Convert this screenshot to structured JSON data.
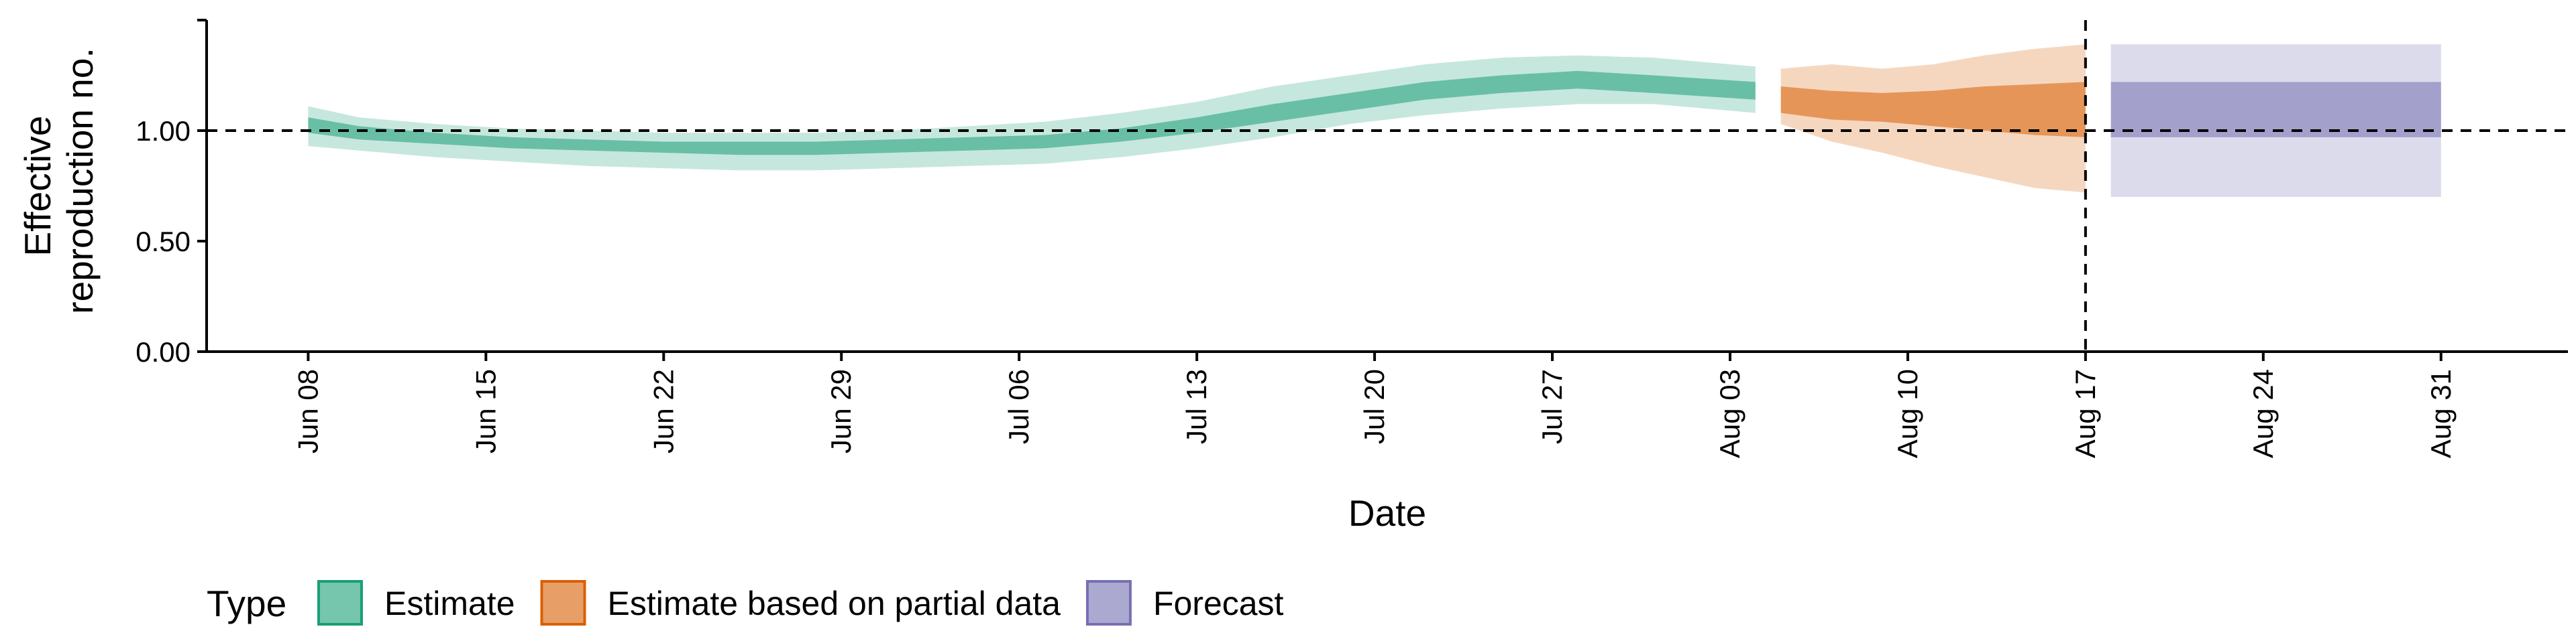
{
  "chart_data": {
    "type": "area",
    "title": "",
    "xlabel": "Date",
    "ylabel_lines": [
      "Effective",
      "reproduction no."
    ],
    "ylim": [
      0,
      1.5
    ],
    "yticks": [
      0,
      0.5,
      1,
      1.5
    ],
    "ytick_labels": [
      "0.00",
      "0.50",
      "1.00",
      ""
    ],
    "xlim": [
      "2020-06-04",
      "2020-09-05"
    ],
    "xticks": [
      "2020-06-08",
      "2020-06-15",
      "2020-06-22",
      "2020-06-29",
      "2020-07-06",
      "2020-07-13",
      "2020-07-20",
      "2020-07-27",
      "2020-08-03",
      "2020-08-10",
      "2020-08-17",
      "2020-08-24",
      "2020-08-31"
    ],
    "xtick_labels": [
      "Jun 08",
      "Jun 15",
      "Jun 22",
      "Jun 29",
      "Jul 06",
      "Jul 13",
      "Jul 20",
      "Jul 27",
      "Aug 03",
      "Aug 10",
      "Aug 17",
      "Aug 24",
      "Aug 31"
    ],
    "hline": 1.0,
    "vline": "2020-08-17",
    "legend": {
      "title": "Type",
      "position": "bottom",
      "items": [
        {
          "label": "Estimate",
          "fill": "#1b9e77",
          "border": "#1b9e77"
        },
        {
          "label": "Estimate based on partial data",
          "fill": "#d95f02",
          "border": "#d95f02"
        },
        {
          "label": "Forecast",
          "fill": "#7570b3",
          "border": "#7570b3"
        }
      ]
    },
    "colors": {
      "Estimate": "#1b9e77",
      "Estimate based on partial data": "#d95f02",
      "Forecast": "#7570b3"
    },
    "series": [
      {
        "name": "Estimate",
        "x": [
          "2020-06-08",
          "2020-06-10",
          "2020-06-13",
          "2020-06-16",
          "2020-06-19",
          "2020-06-22",
          "2020-06-25",
          "2020-06-28",
          "2020-07-01",
          "2020-07-04",
          "2020-07-07",
          "2020-07-10",
          "2020-07-13",
          "2020-07-16",
          "2020-07-19",
          "2020-07-22",
          "2020-07-25",
          "2020-07-28",
          "2020-07-31",
          "2020-08-04"
        ],
        "lower90": [
          0.93,
          0.91,
          0.88,
          0.86,
          0.84,
          0.83,
          0.82,
          0.82,
          0.83,
          0.84,
          0.85,
          0.88,
          0.92,
          0.97,
          1.03,
          1.07,
          1.1,
          1.12,
          1.12,
          1.08
        ],
        "lower50": [
          0.99,
          0.96,
          0.94,
          0.92,
          0.91,
          0.9,
          0.89,
          0.89,
          0.9,
          0.91,
          0.92,
          0.95,
          0.99,
          1.04,
          1.09,
          1.14,
          1.17,
          1.19,
          1.17,
          1.14
        ],
        "upper50": [
          1.06,
          1.02,
          0.99,
          0.97,
          0.96,
          0.95,
          0.95,
          0.95,
          0.96,
          0.97,
          0.98,
          1.01,
          1.06,
          1.12,
          1.17,
          1.22,
          1.25,
          1.27,
          1.25,
          1.22
        ],
        "upper90": [
          1.11,
          1.06,
          1.03,
          1.01,
          1.0,
          0.99,
          0.99,
          0.99,
          1.0,
          1.02,
          1.04,
          1.08,
          1.13,
          1.2,
          1.25,
          1.3,
          1.33,
          1.34,
          1.33,
          1.29
        ]
      },
      {
        "name": "Estimate based on partial data",
        "x": [
          "2020-08-05",
          "2020-08-07",
          "2020-08-09",
          "2020-08-11",
          "2020-08-13",
          "2020-08-15",
          "2020-08-17"
        ],
        "lower90": [
          1.03,
          0.95,
          0.9,
          0.84,
          0.79,
          0.74,
          0.72
        ],
        "lower50": [
          1.08,
          1.05,
          1.04,
          1.02,
          1.0,
          0.98,
          0.97
        ],
        "upper50": [
          1.2,
          1.18,
          1.17,
          1.18,
          1.2,
          1.21,
          1.22
        ],
        "upper90": [
          1.28,
          1.3,
          1.28,
          1.3,
          1.34,
          1.37,
          1.39
        ]
      },
      {
        "name": "Forecast",
        "x": [
          "2020-08-18",
          "2020-08-31"
        ],
        "lower90": [
          0.7,
          0.7
        ],
        "lower50": [
          0.97,
          0.97
        ],
        "upper50": [
          1.22,
          1.22
        ],
        "upper90": [
          1.39,
          1.39
        ]
      }
    ]
  }
}
